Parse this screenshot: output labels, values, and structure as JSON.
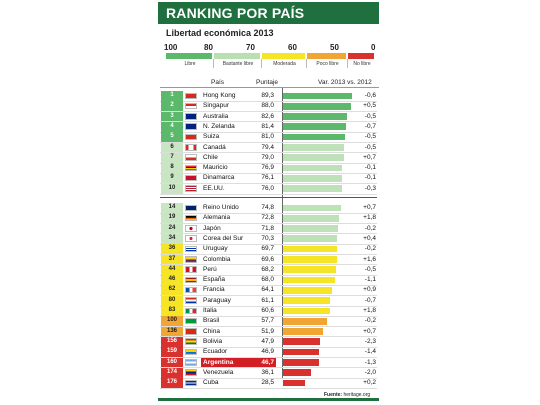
{
  "title": "RANKING POR PAÍS",
  "subtitle": "Libertad económica 2013",
  "scale": {
    "numbers": [
      "100",
      "80",
      "70",
      "60",
      "50",
      "0"
    ],
    "categories": [
      {
        "label": "Libre",
        "color": "#5cb86b"
      },
      {
        "label": "Bastante libre",
        "color": "#b9dfb3"
      },
      {
        "label": "Moderada",
        "color": "#f6e526"
      },
      {
        "label": "Poco libre",
        "color": "#f1a534"
      },
      {
        "label": "No libre",
        "color": "#d8312e"
      }
    ]
  },
  "headers": {
    "country": "País",
    "score": "Puntaje",
    "change": "Var. 2013 vs. 2012"
  },
  "source": {
    "label": "Fuente:",
    "value": "heritage.org"
  },
  "highlight_country": "Argentina",
  "chart_data": {
    "type": "bar",
    "title": "RANKING POR PAÍS",
    "subtitle": "Libertad económica 2013",
    "xlim": [
      0,
      100
    ],
    "rows": [
      {
        "rank": "1",
        "country": "Hong Kong",
        "score": 89.3,
        "score_label": "89,3",
        "change": "-0,6",
        "category": 0
      },
      {
        "rank": "2",
        "country": "Singapur",
        "score": 88.0,
        "score_label": "88,0",
        "change": "+0,5",
        "category": 0
      },
      {
        "rank": "3",
        "country": "Australia",
        "score": 82.6,
        "score_label": "82,6",
        "change": "-0,5",
        "category": 0
      },
      {
        "rank": "4",
        "country": "N. Zelanda",
        "score": 81.4,
        "score_label": "81,4",
        "change": "-0,7",
        "category": 0
      },
      {
        "rank": "5",
        "country": "Suiza",
        "score": 81.0,
        "score_label": "81,0",
        "change": "-0,5",
        "category": 0
      },
      {
        "rank": "6",
        "country": "Canadá",
        "score": 79.4,
        "score_label": "79,4",
        "change": "-0,5",
        "category": 1
      },
      {
        "rank": "7",
        "country": "Chile",
        "score": 79.0,
        "score_label": "79,0",
        "change": "+0,7",
        "category": 1
      },
      {
        "rank": "8",
        "country": "Mauricio",
        "score": 76.9,
        "score_label": "76,9",
        "change": "-0,1",
        "category": 1
      },
      {
        "rank": "9",
        "country": "Dinamarca",
        "score": 76.1,
        "score_label": "76,1",
        "change": "-0,1",
        "category": 1
      },
      {
        "rank": "10",
        "country": "EE.UU.",
        "score": 76.0,
        "score_label": "76,0",
        "change": "-0,3",
        "category": 1
      },
      {
        "rank": "14",
        "country": "Reino Unido",
        "score": 74.8,
        "score_label": "74,8",
        "change": "+0,7",
        "category": 1
      },
      {
        "rank": "19",
        "country": "Alemania",
        "score": 72.8,
        "score_label": "72,8",
        "change": "+1,8",
        "category": 1
      },
      {
        "rank": "24",
        "country": "Japón",
        "score": 71.8,
        "score_label": "71,8",
        "change": "-0,2",
        "category": 1
      },
      {
        "rank": "34",
        "country": "Corea del Sur",
        "score": 70.3,
        "score_label": "70,3",
        "change": "+0,4",
        "category": 1
      },
      {
        "rank": "36",
        "country": "Uruguay",
        "score": 69.7,
        "score_label": "69,7",
        "change": "-0,2",
        "category": 2
      },
      {
        "rank": "37",
        "country": "Colombia",
        "score": 69.6,
        "score_label": "69,6",
        "change": "+1,6",
        "category": 2
      },
      {
        "rank": "44",
        "country": "Perú",
        "score": 68.2,
        "score_label": "68,2",
        "change": "-0,5",
        "category": 2
      },
      {
        "rank": "46",
        "country": "España",
        "score": 68.0,
        "score_label": "68,0",
        "change": "-1,1",
        "category": 2
      },
      {
        "rank": "62",
        "country": "Francia",
        "score": 64.1,
        "score_label": "64,1",
        "change": "+0,9",
        "category": 2
      },
      {
        "rank": "80",
        "country": "Paraguay",
        "score": 61.1,
        "score_label": "61,1",
        "change": "-0,7",
        "category": 2
      },
      {
        "rank": "83",
        "country": "Italia",
        "score": 60.6,
        "score_label": "60,6",
        "change": "+1,8",
        "category": 2
      },
      {
        "rank": "100",
        "country": "Brasil",
        "score": 57.7,
        "score_label": "57,7",
        "change": "-0,2",
        "category": 3
      },
      {
        "rank": "136",
        "country": "China",
        "score": 51.9,
        "score_label": "51,9",
        "change": "+0,7",
        "category": 3
      },
      {
        "rank": "156",
        "country": "Bolivia",
        "score": 47.9,
        "score_label": "47,9",
        "change": "-2,3",
        "category": 4
      },
      {
        "rank": "159",
        "country": "Ecuador",
        "score": 46.9,
        "score_label": "46,9",
        "change": "-1,4",
        "category": 4
      },
      {
        "rank": "160",
        "country": "Argentina",
        "score": 46.7,
        "score_label": "46,7",
        "change": "-1,3",
        "category": 4
      },
      {
        "rank": "174",
        "country": "Venezuela",
        "score": 36.1,
        "score_label": "36,1",
        "change": "-2,0",
        "category": 4
      },
      {
        "rank": "176",
        "country": "Cuba",
        "score": 28.5,
        "score_label": "28,5",
        "change": "+0,2",
        "category": 4
      }
    ]
  }
}
